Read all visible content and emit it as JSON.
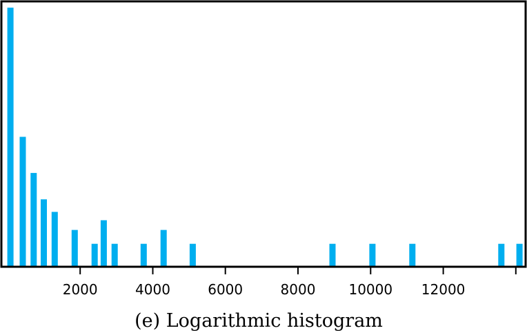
{
  "chart_data": {
    "type": "bar",
    "title": "",
    "caption": "(e) Logarithmic histogram",
    "xlabel": "",
    "ylabel": "",
    "xlim": [
      -150,
      14250
    ],
    "ylim": [
      0,
      19
    ],
    "x_ticks": [
      2000,
      4000,
      6000,
      8000,
      10000,
      12000,
      14000
    ],
    "x_tick_labels": [
      "2000",
      "4000",
      "6000",
      "8000",
      "10000",
      "12000",
      ""
    ],
    "y_ticks_visible": false,
    "grid": false,
    "bar_color": "#00aeef",
    "bars": [
      {
        "x": 80,
        "value": 18.6
      },
      {
        "x": 420,
        "value": 9.3
      },
      {
        "x": 720,
        "value": 6.7
      },
      {
        "x": 1000,
        "value": 4.8
      },
      {
        "x": 1300,
        "value": 3.9
      },
      {
        "x": 1850,
        "value": 2.6
      },
      {
        "x": 2400,
        "value": 1.6
      },
      {
        "x": 2650,
        "value": 3.3
      },
      {
        "x": 2950,
        "value": 1.6
      },
      {
        "x": 3750,
        "value": 1.6
      },
      {
        "x": 4300,
        "value": 2.6
      },
      {
        "x": 5100,
        "value": 1.6
      },
      {
        "x": 8950,
        "value": 1.6
      },
      {
        "x": 10050,
        "value": 1.6
      },
      {
        "x": 11150,
        "value": 1.6
      },
      {
        "x": 13600,
        "value": 1.6
      },
      {
        "x": 14100,
        "value": 1.6
      }
    ]
  }
}
